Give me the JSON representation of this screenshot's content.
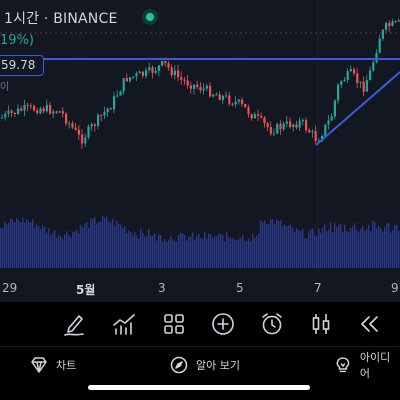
{
  "header": {
    "symbol_text": "1시간 · BINANCE",
    "change_text": "19%)",
    "price_tag": "59.78",
    "price_sub": "이"
  },
  "x_axis": {
    "labels": [
      "29",
      "5월",
      "3",
      "5",
      "7",
      "9"
    ]
  },
  "colors": {
    "background": "#131722",
    "up": "#26a69a",
    "down": "#ef5350",
    "trendline": "#3b5bdb",
    "volume": "#2a3a8a",
    "live": "#26c49a"
  },
  "toolbar": {
    "icons": [
      "draw-icon",
      "indicators-icon",
      "layout-icon",
      "add-icon",
      "alert-icon",
      "candles-icon",
      "rewind-icon"
    ]
  },
  "nav": {
    "chart_label": "차트",
    "explore_label": "알아 보기",
    "ideas_label": "아이디어"
  }
}
